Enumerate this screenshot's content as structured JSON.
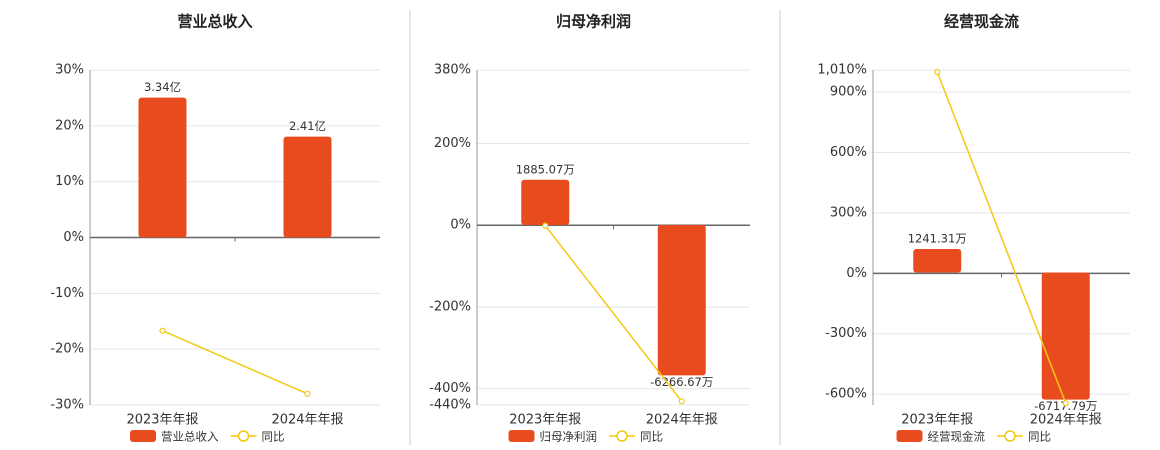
{
  "chart_data": [
    {
      "type": "bar",
      "title": "营业总收入",
      "categories": [
        "2023年年报",
        "2024年年报"
      ],
      "series": [
        {
          "name": "营业总收入",
          "color": "#e84c1e",
          "axis": "y2",
          "values": [
            3.34,
            2.41
          ],
          "value_labels": [
            "3.34亿",
            "2.41亿"
          ]
        },
        {
          "name": "同比",
          "type": "line",
          "color": "#f2c811",
          "values": [
            -16.7,
            -28.0
          ]
        }
      ],
      "ylim": [
        -30,
        30
      ],
      "yticks": [
        {
          "value": 30,
          "label": "30%"
        },
        {
          "value": 20,
          "label": "20%"
        },
        {
          "value": 10,
          "label": "10%"
        },
        {
          "value": 0,
          "label": "0%"
        },
        {
          "value": -10,
          "label": "-10%"
        },
        {
          "value": -20,
          "label": "-20%"
        },
        {
          "value": -30,
          "label": "-30%"
        }
      ],
      "y2lim": [
        -4,
        4
      ],
      "grid": true
    },
    {
      "type": "bar",
      "title": "归母净利润",
      "categories": [
        "2023年年报",
        "2024年年报"
      ],
      "series": [
        {
          "name": "归母净利润",
          "color": "#e84c1e",
          "axis": "y2",
          "values": [
            1885.07,
            -6266.67
          ],
          "value_labels": [
            "1885.07万",
            "-6266.67万"
          ]
        },
        {
          "name": "同比",
          "type": "line",
          "color": "#f2c811",
          "values": [
            -1,
            -431
          ]
        }
      ],
      "ylim": [
        -440,
        380
      ],
      "yticks": [
        {
          "value": 380,
          "label": "380%"
        },
        {
          "value": 200,
          "label": "200%"
        },
        {
          "value": 0,
          "label": "0%"
        },
        {
          "value": -200,
          "label": "-200%"
        },
        {
          "value": -400,
          "label": "-400%"
        },
        {
          "value": -440,
          "label": "-440%"
        }
      ],
      "y2lim": [
        -7500,
        6460
      ],
      "grid": true
    },
    {
      "type": "bar",
      "title": "经营现金流",
      "categories": [
        "2023年年报",
        "2024年年报"
      ],
      "series": [
        {
          "name": "经营现金流",
          "color": "#e84c1e",
          "axis": "y2",
          "values": [
            1241.31,
            -6717.79
          ],
          "value_labels": [
            "1241.31万",
            "-6717.79万"
          ]
        },
        {
          "name": "同比",
          "type": "line",
          "color": "#f2c811",
          "values": [
            1000,
            -645
          ]
        }
      ],
      "ylim": [
        -654,
        1010
      ],
      "yticks": [
        {
          "value": 1010,
          "label": "1,010%"
        },
        {
          "value": 900,
          "label": "900%"
        },
        {
          "value": 600,
          "label": "600%"
        },
        {
          "value": 300,
          "label": "300%"
        },
        {
          "value": 0,
          "label": "0%"
        },
        {
          "value": -300,
          "label": "-300%"
        },
        {
          "value": -600,
          "label": "-600%"
        }
      ],
      "y2lim": [
        -7000,
        10700
      ],
      "grid": true
    }
  ]
}
